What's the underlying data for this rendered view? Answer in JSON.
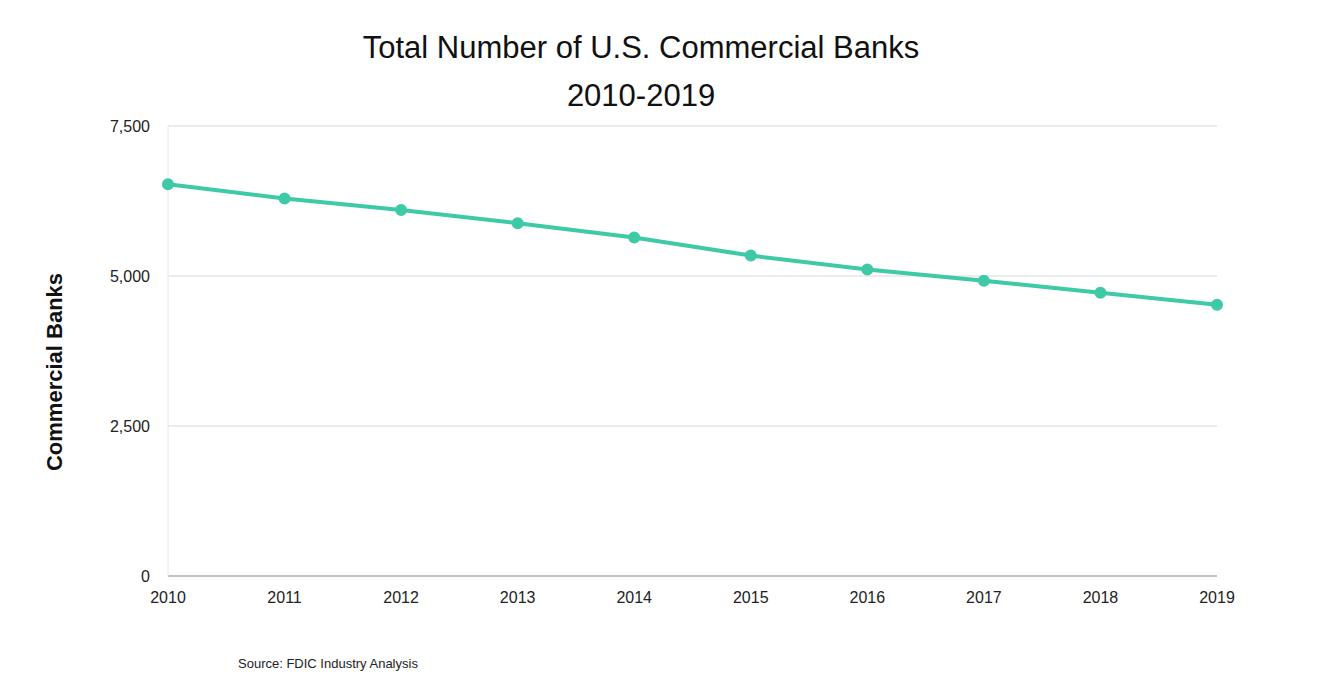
{
  "chart_data": {
    "type": "line",
    "title": "Total Number of U.S. Commercial Banks",
    "subtitle": "2010-2019",
    "y_label": "Commercial Banks",
    "source": "Source: FDIC Industry Analysis",
    "categories": [
      "2010",
      "2011",
      "2012",
      "2013",
      "2014",
      "2015",
      "2016",
      "2017",
      "2018",
      "2019"
    ],
    "values": [
      6530,
      6290,
      6100,
      5880,
      5640,
      5340,
      5110,
      4920,
      4720,
      4520
    ],
    "color": "#3ec9a7",
    "marker": "circle",
    "ylim": [
      0,
      7500
    ],
    "yticks": [
      0,
      {
        "value": 2500,
        "label": "2,500"
      },
      {
        "value": 5000,
        "label": "5,000"
      },
      {
        "value": 7500,
        "label": "7,500"
      }
    ],
    "grid": true
  }
}
